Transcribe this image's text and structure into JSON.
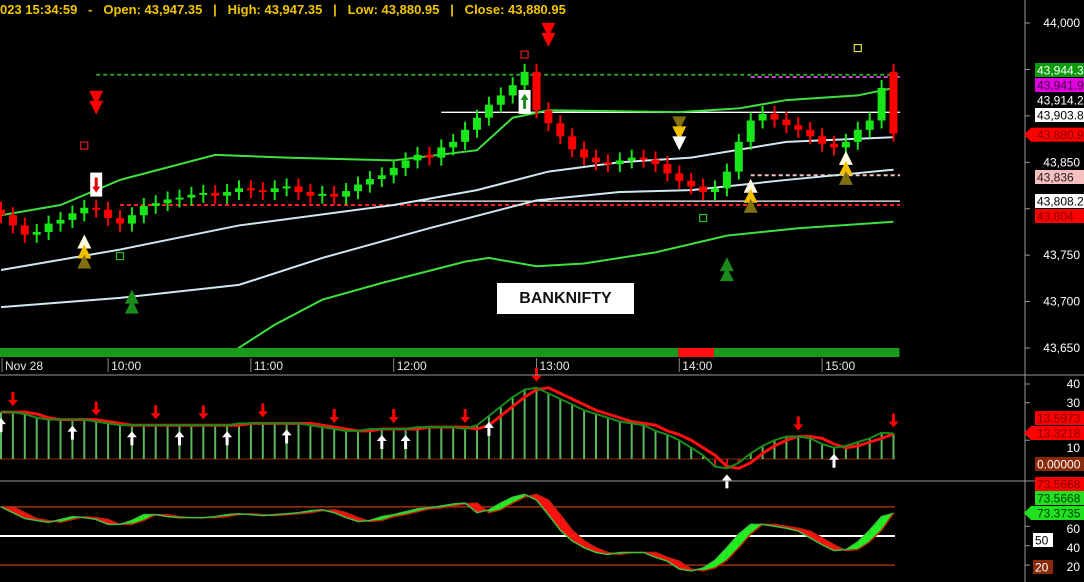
{
  "header": {
    "text": "023 15:34:59   -   Open: 43,947.35   |   High: 43,947.35   |   Low: 43,880.95   |   Close: 43,880.95"
  },
  "symbol_label": "BANKNIFTY",
  "colors": {
    "background": "#000000",
    "bull": "#19e619",
    "bear": "#ff0000",
    "band": "#3ee03e",
    "midline": "#cfe8f0",
    "header": "#f2c500",
    "trend_bar_green": "#1a9a1a",
    "trend_bar_red": "#ff1010"
  },
  "chart_data": [
    {
      "type": "candlestick",
      "panel": "price",
      "session_start": "09:15",
      "interval_minutes": 5,
      "x_tick_labels": [
        {
          "time": "09:15",
          "label": "Nov 28"
        },
        {
          "time": "10:00",
          "label": "10:00"
        },
        {
          "time": "11:00",
          "label": "11:00"
        },
        {
          "time": "12:00",
          "label": "12:00"
        },
        {
          "time": "13:00",
          "label": "13:00"
        },
        {
          "time": "14:00",
          "label": "14:00"
        },
        {
          "time": "15:00",
          "label": "15:00"
        }
      ],
      "y_tick_labels": [
        {
          "value": 44000,
          "label": "44,000"
        },
        {
          "value": 43850,
          "label": "43,850"
        },
        {
          "value": 43750,
          "label": "43,750"
        },
        {
          "value": 43700,
          "label": "43,700"
        },
        {
          "value": 43650,
          "label": "43,650"
        }
      ],
      "ylim": [
        43640,
        44025
      ],
      "close": [
        43793,
        43782,
        43772,
        43775,
        43784,
        43788,
        43795,
        43801,
        43799,
        43790,
        43784,
        43793,
        43803,
        43806,
        43810,
        43812,
        43815,
        43817,
        43814,
        43818,
        43822,
        43820,
        43818,
        43822,
        43824,
        43818,
        43814,
        43816,
        43813,
        43819,
        43826,
        43832,
        43836,
        43844,
        43852,
        43858,
        43855,
        43866,
        43872,
        43885,
        43898,
        43912,
        43922,
        43933,
        43947.35,
        43906,
        43892,
        43878,
        43864,
        43855,
        43850,
        43848,
        43852,
        43855,
        43853,
        43848,
        43838,
        43830,
        43824,
        43818,
        43822,
        43840,
        43872,
        43895,
        43902,
        43896,
        43890,
        43885,
        43878,
        43870,
        43866,
        43872,
        43885,
        43895,
        43930,
        43880.95
      ],
      "open_last": 43947.35,
      "bands": [
        {
          "role": "upper-band",
          "color": "#3ee03e",
          "points": [
            [
              "09:15",
              43793
            ],
            [
              "09:40",
              43804
            ],
            [
              "10:05",
              43831
            ],
            [
              "10:45",
              43858
            ],
            [
              "11:15",
              43855
            ],
            [
              "12:00",
              43852
            ],
            [
              "12:35",
              43863
            ],
            [
              "12:50",
              43898
            ],
            [
              "13:05",
              43906
            ],
            [
              "14:00",
              43904
            ],
            [
              "14:25",
              43908
            ],
            [
              "14:45",
              43917
            ],
            [
              "15:15",
              43922
            ],
            [
              "15:30",
              43930
            ]
          ]
        },
        {
          "role": "mid-line-1",
          "color": "#cfe8f0",
          "points": [
            [
              "09:15",
              43734
            ],
            [
              "10:05",
              43756
            ],
            [
              "10:55",
              43782
            ],
            [
              "12:00",
              43804
            ],
            [
              "12:35",
              43820
            ],
            [
              "13:05",
              43840
            ],
            [
              "13:35",
              43850
            ],
            [
              "14:05",
              43855
            ],
            [
              "14:45",
              43872
            ],
            [
              "15:30",
              43877
            ]
          ]
        },
        {
          "role": "mid-line-2",
          "color": "#cfe8f0",
          "points": [
            [
              "09:15",
              43694
            ],
            [
              "10:05",
              43704
            ],
            [
              "10:55",
              43718
            ],
            [
              "11:30",
              43747
            ],
            [
              "12:15",
              43779
            ],
            [
              "13:00",
              43809
            ],
            [
              "13:35",
              43818
            ],
            [
              "14:05",
              43820
            ],
            [
              "14:45",
              43831
            ],
            [
              "15:30",
              43842
            ]
          ]
        },
        {
          "role": "lower-band",
          "color": "#3ee03e",
          "points": [
            [
              "10:50",
              43642
            ],
            [
              "11:10",
              43675
            ],
            [
              "11:30",
              43702
            ],
            [
              "11:55",
              43720
            ],
            [
              "12:30",
              43743
            ],
            [
              "12:40",
              43747
            ],
            [
              "13:00",
              43738
            ],
            [
              "13:20",
              43741
            ],
            [
              "13:50",
              43753
            ],
            [
              "14:20",
              43771
            ],
            [
              "14:50",
              43779
            ],
            [
              "15:30",
              43786
            ]
          ]
        }
      ],
      "levels": [
        {
          "value": 43944.3,
          "from": "09:55",
          "style": "dotted",
          "color": "#2aa02a"
        },
        {
          "value": 43941.9,
          "from": "14:30",
          "style": "dotted",
          "color": "#d040d0"
        },
        {
          "value": 43903.8,
          "from": "12:20",
          "style": "solid",
          "color": "#ffffff"
        },
        {
          "value": 43836,
          "from": "14:30",
          "style": "dotted",
          "color": "#f0c0c0"
        },
        {
          "value": 43808.2,
          "from": "12:10",
          "style": "solid",
          "color": "#ffffff"
        },
        {
          "value": 43804,
          "from": "10:05",
          "style": "dotted",
          "color": "#ff2020"
        }
      ],
      "price_tags": [
        {
          "label": "43,944.3",
          "value": 43944.3,
          "bg": "#0a9a0a",
          "fg": "#ffffff"
        },
        {
          "label": "43,941.9",
          "value": 43939.5,
          "bg": "#e000e0",
          "fg": "#400040"
        },
        {
          "label": "43,914.2",
          "value": 43914.2,
          "bg": "",
          "fg": "#ffffff"
        },
        {
          "label": "43,903.8",
          "value": 43901,
          "bg": "#ffffff",
          "fg": "#000000"
        },
        {
          "label": "43,880.9",
          "value": 43880.95,
          "bg": "#ff0000",
          "fg": "#800000",
          "pointer": true
        },
        {
          "label": "43,836",
          "value": 43836,
          "bg": "#f5c0c0",
          "fg": "#302020"
        },
        {
          "label": "43,808.2",
          "value": 43808.2,
          "bg": "#ffffff",
          "fg": "#000000"
        },
        {
          "label": "43,804",
          "value": 43795,
          "bg": "#ff0000",
          "fg": "#800000"
        }
      ],
      "markers": [
        {
          "type": "double-down-triangle",
          "time": "09:55",
          "value": 43912,
          "color": "#ff0000"
        },
        {
          "type": "hollow-square",
          "time": "09:50",
          "value": 43868,
          "color": "#e02020"
        },
        {
          "type": "sell-arrow-box",
          "time": "09:55",
          "value": 43826
        },
        {
          "type": "buy-triangle-stack",
          "time": "09:50",
          "value": 43755
        },
        {
          "type": "hollow-square",
          "time": "10:05",
          "value": 43749,
          "color": "#20c020"
        },
        {
          "type": "double-up-triangle",
          "time": "10:10",
          "value": 43700,
          "color": "#1a8a1a"
        },
        {
          "type": "hollow-square",
          "time": "12:55",
          "value": 43966,
          "color": "#e02020"
        },
        {
          "type": "double-down-triangle",
          "time": "13:05",
          "value": 43985,
          "color": "#ff0000"
        },
        {
          "type": "buy-arrow-box",
          "time": "12:55",
          "value": 43915
        },
        {
          "type": "sell-triangle-stack",
          "time": "14:00",
          "value": 43880
        },
        {
          "type": "hollow-square",
          "time": "14:10",
          "value": 43790,
          "color": "#20c020"
        },
        {
          "type": "double-up-triangle",
          "time": "14:20",
          "value": 43735,
          "color": "#1a8a1a"
        },
        {
          "type": "buy-triangle-stack",
          "time": "14:30",
          "value": 43815
        },
        {
          "type": "buy-triangle-stack",
          "time": "15:10",
          "value": 43845
        },
        {
          "type": "hollow-square",
          "time": "15:15",
          "value": 43973,
          "color": "#e0e040"
        }
      ],
      "trend_bar": [
        {
          "from": "09:15",
          "to": "14:00",
          "state": "bull"
        },
        {
          "from": "14:00",
          "to": "14:15",
          "state": "bear"
        },
        {
          "from": "14:15",
          "to": "15:30",
          "state": "bull"
        }
      ]
    },
    {
      "type": "histogram-line",
      "panel": "oscillator-1",
      "ylim": [
        -10,
        44
      ],
      "y_tick_labels": [
        {
          "value": 40,
          "label": "40"
        },
        {
          "value": 30,
          "label": "30"
        },
        {
          "value": 10,
          "label": "10"
        }
      ],
      "main": [
        25,
        25,
        24,
        22,
        21,
        21,
        21,
        21,
        20,
        19,
        18,
        18,
        18,
        18,
        18,
        18,
        18,
        18,
        18,
        18,
        19,
        19,
        19,
        19,
        19,
        19,
        18,
        17,
        16,
        15,
        15,
        16,
        16,
        16,
        16,
        17,
        17,
        17,
        17,
        16,
        18,
        23,
        28,
        33,
        37,
        38,
        35,
        32,
        29,
        26,
        24,
        22,
        20,
        19,
        18,
        15,
        13,
        10,
        6,
        2,
        -4,
        -5,
        -2,
        3,
        7,
        10,
        12,
        12,
        11,
        8,
        6,
        7,
        9,
        11,
        14,
        13.5973
      ],
      "signal": [
        25,
        25,
        25,
        24,
        22,
        21,
        21,
        21,
        21,
        20,
        19,
        18,
        18,
        18,
        18,
        18,
        18,
        18,
        18,
        18,
        18,
        19,
        19,
        19,
        19,
        19,
        19,
        18,
        17,
        16,
        15,
        15,
        16,
        16,
        16,
        16,
        17,
        17,
        17,
        17,
        16,
        18,
        23,
        28,
        33,
        37,
        38,
        35,
        32,
        29,
        26,
        24,
        22,
        20,
        19,
        18,
        15,
        13,
        10,
        6,
        2,
        -4,
        -5,
        -2,
        3,
        7,
        10,
        12,
        12,
        11,
        8,
        6,
        7,
        9,
        11,
        13.3218
      ],
      "down_arrows": [
        "09:20",
        "09:55",
        "10:20",
        "10:40",
        "11:05",
        "11:35",
        "12:00",
        "12:30",
        "13:00",
        "14:50",
        "15:30"
      ],
      "up_arrows": [
        "09:15",
        "09:45",
        "10:10",
        "10:30",
        "10:50",
        "11:15",
        "11:55",
        "12:05",
        "12:40",
        "14:20",
        "15:05"
      ],
      "value_tags": [
        {
          "label": "13.5973",
          "value": 13.5973,
          "bg": "#ff0000",
          "fg": "#800000"
        },
        {
          "label": "13.3218",
          "value": 13.3218,
          "bg": "#ff0000",
          "fg": "#800000",
          "pointer": true
        },
        {
          "label": "0.00000",
          "value": 0,
          "bg": "#8a2a0a",
          "fg": "#ffffff"
        }
      ]
    },
    {
      "type": "line",
      "panel": "oscillator-2",
      "ylim": [
        10,
        100
      ],
      "levels": [
        80,
        50,
        20
      ],
      "y_tick_labels": [
        {
          "value": 60,
          "label": "60"
        },
        {
          "value": 40,
          "label": "40"
        },
        {
          "value": 20,
          "label": "20"
        }
      ],
      "fast": [
        80,
        74,
        68,
        66,
        64,
        67,
        70,
        69,
        67,
        62,
        62,
        66,
        72,
        72,
        70,
        69,
        69,
        69,
        70,
        72,
        73,
        72,
        71,
        72,
        73,
        74,
        76,
        77,
        74,
        69,
        65,
        66,
        70,
        72,
        75,
        78,
        79,
        81,
        83,
        84,
        74,
        77,
        84,
        90,
        93,
        87,
        72,
        56,
        45,
        38,
        33,
        31,
        33,
        33,
        33,
        28,
        24,
        16,
        14,
        17,
        25,
        38,
        52,
        62,
        62,
        60,
        58,
        55,
        48,
        41,
        35,
        36,
        44,
        56,
        70,
        73.3735
      ],
      "slow": [
        80,
        80,
        74,
        68,
        66,
        64,
        67,
        70,
        69,
        67,
        62,
        62,
        66,
        72,
        72,
        70,
        69,
        69,
        69,
        70,
        72,
        73,
        72,
        71,
        72,
        73,
        74,
        76,
        77,
        74,
        69,
        65,
        66,
        70,
        72,
        75,
        78,
        79,
        81,
        83,
        84,
        74,
        77,
        84,
        90,
        93,
        87,
        72,
        56,
        45,
        38,
        33,
        31,
        33,
        33,
        33,
        28,
        24,
        16,
        14,
        17,
        25,
        38,
        52,
        62,
        62,
        60,
        58,
        55,
        48,
        41,
        35,
        36,
        44,
        56,
        73.5668
      ],
      "value_tags": [
        {
          "label": "73.5668",
          "value": 87,
          "bg": "#ff0000",
          "fg": "#800000"
        },
        {
          "label": "73.5668",
          "value": 73.5668,
          "bg": "#20e020",
          "fg": "#004000"
        },
        {
          "label": "73.3735",
          "value": 58,
          "bg": "#20e020",
          "fg": "#004000",
          "pointer": true
        },
        {
          "label": "50",
          "value": 50,
          "bg": "#ffffff",
          "fg": "#000000"
        },
        {
          "label": "20",
          "value": 20,
          "bg": "#8a2a0a",
          "fg": "#ffffff"
        }
      ]
    }
  ]
}
